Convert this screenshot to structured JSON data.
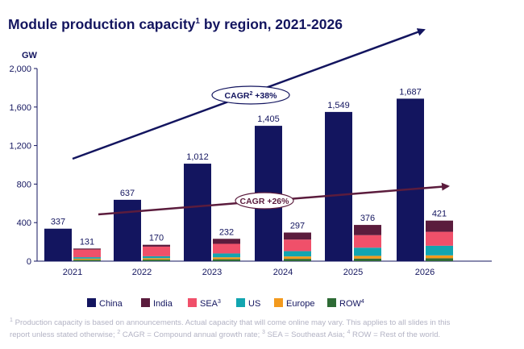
{
  "title": {
    "main": "Module production capacity",
    "sup": "1",
    "rest": " by region, 2021-2026"
  },
  "chart_data": {
    "type": "bar",
    "stacked_second_bar": true,
    "ylabel": "GW",
    "ylim": [
      0,
      2000
    ],
    "yticks": [
      0,
      400,
      800,
      1200,
      1600,
      2000
    ],
    "ytick_labels": [
      "0",
      "400",
      "800",
      "1,200",
      "1,600",
      "2,000"
    ],
    "categories": [
      "2021",
      "2022",
      "2023",
      "2024",
      "2025",
      "2026"
    ],
    "china": {
      "name": "China",
      "color": "#13155f",
      "values": [
        337,
        637,
        1012,
        1405,
        1549,
        1687
      ],
      "labels": [
        "337",
        "637",
        "1,012",
        "1,405",
        "1,549",
        "1,687"
      ]
    },
    "rest_of_world_totals": {
      "values": [
        131,
        170,
        232,
        297,
        376,
        421
      ],
      "labels": [
        "131",
        "170",
        "232",
        "297",
        "376",
        "421"
      ]
    },
    "stack_series": [
      {
        "name": "ROW",
        "sup": "4",
        "color": "#2e6b35",
        "values": [
          14,
          16,
          20,
          24,
          27,
          30
        ]
      },
      {
        "name": "Europe",
        "sup": "",
        "color": "#f39a1d",
        "values": [
          12,
          15,
          20,
          25,
          28,
          30
        ]
      },
      {
        "name": "US",
        "sup": "",
        "color": "#12a5b0",
        "values": [
          15,
          20,
          40,
          55,
          85,
          100
        ]
      },
      {
        "name": "SEA",
        "sup": "3",
        "color": "#f0506a",
        "values": [
          80,
          100,
          100,
          120,
          130,
          145
        ]
      },
      {
        "name": "India",
        "sup": "",
        "color": "#5b1c3d",
        "values": [
          10,
          19,
          52,
          73,
          106,
          116
        ]
      }
    ],
    "legend": [
      {
        "name": "China",
        "sup": "",
        "color": "#13155f"
      },
      {
        "name": "India",
        "sup": "",
        "color": "#5b1c3d"
      },
      {
        "name": "SEA",
        "sup": "3",
        "color": "#f0506a"
      },
      {
        "name": "US",
        "sup": "",
        "color": "#12a5b0"
      },
      {
        "name": "Europe",
        "sup": "",
        "color": "#f39a1d"
      },
      {
        "name": "ROW",
        "sup": "4",
        "color": "#2e6b35"
      }
    ],
    "legend_placement": "bottom",
    "annotations": {
      "cagr_china": {
        "pre": "CAGR",
        "sup": "2",
        "post": " +38%",
        "color": "#13155f"
      },
      "cagr_row": {
        "text": "CAGR +26%",
        "color": "#5b1c3d"
      }
    }
  },
  "footnote": {
    "line1_sup": "1",
    "line1": " Production capacity is based on announcements. Actual capacity that will come online may vary. This applies to all slides in this",
    "line2a": "report unless stated otherwise; ",
    "line2_sup2": "2",
    "line2b": " CAGR = Compound annual growth rate; ",
    "line2_sup3": "3",
    "line2c": " SEA = Southeast Asia; ",
    "line2_sup4": "4",
    "line2d": " ROW = Rest of the world."
  }
}
